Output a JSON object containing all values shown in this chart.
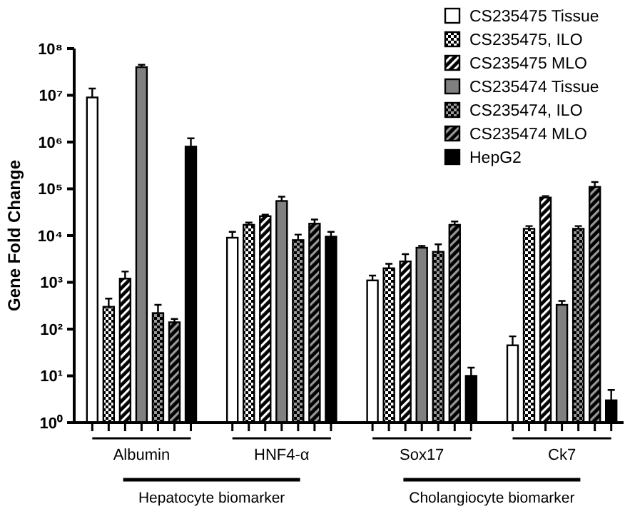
{
  "chart_data": {
    "type": "bar",
    "ylabel": "Gene Fold Change",
    "categories": [
      "Albumin",
      "HNF4-α",
      "Sox17",
      "Ck7"
    ],
    "log": "y",
    "ylim": [
      1,
      100000000
    ],
    "yticks": [
      {
        "value": 1,
        "label": "10⁰"
      },
      {
        "value": 10,
        "label": "10¹"
      },
      {
        "value": 100,
        "label": "10²"
      },
      {
        "value": 1000,
        "label": "10³"
      },
      {
        "value": 10000,
        "label": "10⁴"
      },
      {
        "value": 100000,
        "label": "10⁵"
      },
      {
        "value": 1000000,
        "label": "10⁶"
      },
      {
        "value": 10000000,
        "label": "10⁷"
      },
      {
        "value": 100000000,
        "label": "10⁸"
      }
    ],
    "legend": "top right",
    "grid": false,
    "series": [
      {
        "name": "CS235475 Tissue",
        "color": "#ffffff",
        "values": [
          9000000,
          9000,
          1100,
          45
        ],
        "errors": [
          [
            9000000,
            14000000
          ],
          [
            9000,
            12000
          ],
          [
            1100,
            1400
          ],
          [
            45,
            70
          ]
        ]
      },
      {
        "name": "CS235475, ILO",
        "color": "#000000",
        "values": [
          300,
          17000,
          2000,
          14000
        ],
        "errors": [
          [
            300,
            450
          ],
          [
            17000,
            19000
          ],
          [
            2000,
            2500
          ],
          [
            14000,
            16000
          ]
        ]
      },
      {
        "name": "CS235475 MLO",
        "color": "#000000",
        "values": [
          1200,
          26000,
          2800,
          65000
        ],
        "errors": [
          [
            1200,
            1700
          ],
          [
            26000,
            28000
          ],
          [
            2800,
            4000
          ],
          [
            65000,
            70000
          ]
        ]
      },
      {
        "name": "CS235474 Tissue",
        "color": "#808080",
        "values": [
          40000000,
          55000,
          5500,
          330
        ],
        "errors": [
          [
            40000000,
            45000000
          ],
          [
            55000,
            68000
          ],
          [
            5500,
            6000
          ],
          [
            330,
            400
          ]
        ]
      },
      {
        "name": "CS235474, ILO",
        "color": "#000000",
        "values": [
          220,
          8000,
          4500,
          14000
        ],
        "errors": [
          [
            220,
            330
          ],
          [
            8000,
            10500
          ],
          [
            4500,
            6500
          ],
          [
            14000,
            16000
          ]
        ]
      },
      {
        "name": "CS235474 MLO",
        "color": "#000000",
        "values": [
          140,
          18000,
          17000,
          110000
        ],
        "errors": [
          [
            140,
            165
          ],
          [
            18000,
            22000
          ],
          [
            17000,
            20000
          ],
          [
            110000,
            140000
          ]
        ]
      },
      {
        "name": "HepG2",
        "color": "#000000",
        "values": [
          800000,
          9500,
          10,
          3
        ],
        "errors": [
          [
            800000,
            1200000
          ],
          [
            9500,
            12000
          ],
          [
            10,
            15
          ],
          [
            3,
            5
          ]
        ]
      }
    ],
    "annotations": [
      "Hepatocyte biomarker",
      "Cholangiocyte biomarker"
    ]
  }
}
